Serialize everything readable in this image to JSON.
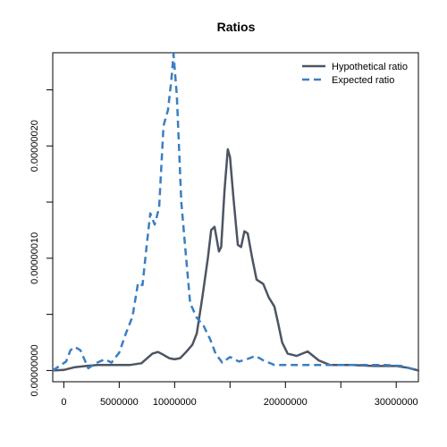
{
  "chart_data": {
    "type": "line",
    "title": "Ratios",
    "xlabel": "",
    "ylabel": "",
    "xlim": [
      -1000000,
      32000000
    ],
    "ylim": [
      -1e-08,
      2.83e-07
    ],
    "x_ticks": [
      0,
      5000000,
      10000000,
      15000000,
      20000000,
      25000000,
      30000000
    ],
    "x_tick_labels": [
      "0",
      "5000000",
      "10000000",
      "",
      "20000000",
      "",
      "30000000"
    ],
    "y_ticks": [
      0,
      5e-08,
      1e-07,
      1.5e-07,
      2e-07,
      2.5e-07
    ],
    "y_tick_labels": [
      "0.00000000",
      "",
      "0.00000010",
      "",
      "0.00000020",
      ""
    ],
    "legend_position": "top-right",
    "grid": false,
    "series": [
      {
        "name": "Hypothetical ratio",
        "color": "#4d5563",
        "dash": "solid",
        "points": [
          [
            -1000000,
            0.0
          ],
          [
            0,
            5e-10
          ],
          [
            1000000,
            3e-09
          ],
          [
            2000000,
            4e-09
          ],
          [
            3000000,
            5e-09
          ],
          [
            4000000,
            5e-09
          ],
          [
            5000000,
            5e-09
          ],
          [
            6000000,
            5e-09
          ],
          [
            7000000,
            6.5e-09
          ],
          [
            8000000,
            1.5e-08
          ],
          [
            8500000,
            1.65e-08
          ],
          [
            9000000,
            1.4e-08
          ],
          [
            9500000,
            1.1e-08
          ],
          [
            10000000,
            1e-08
          ],
          [
            10500000,
            1.1e-08
          ],
          [
            11000000,
            1.6e-08
          ],
          [
            11600000,
            2.3e-08
          ],
          [
            12000000,
            3.3e-08
          ],
          [
            12500000,
            6.5e-08
          ],
          [
            13000000,
            1e-07
          ],
          [
            13300000,
            1.25e-07
          ],
          [
            13600000,
            1.28e-07
          ],
          [
            14000000,
            1.06e-07
          ],
          [
            14200000,
            1.1e-07
          ],
          [
            14500000,
            1.6e-07
          ],
          [
            14800000,
            1.97e-07
          ],
          [
            15000000,
            1.9e-07
          ],
          [
            15300000,
            1.55e-07
          ],
          [
            15700000,
            1.12e-07
          ],
          [
            16000000,
            1.1e-07
          ],
          [
            16300000,
            1.24e-07
          ],
          [
            16600000,
            1.22e-07
          ],
          [
            17000000,
            1e-07
          ],
          [
            17400000,
            8.1e-08
          ],
          [
            18000000,
            7.7e-08
          ],
          [
            18500000,
            6.5e-08
          ],
          [
            19000000,
            5.7e-08
          ],
          [
            19300000,
            4.4e-08
          ],
          [
            19700000,
            2.5e-08
          ],
          [
            20200000,
            1.5e-08
          ],
          [
            21000000,
            1.3e-08
          ],
          [
            22000000,
            1.7e-08
          ],
          [
            23000000,
            9e-09
          ],
          [
            24000000,
            5e-09
          ],
          [
            26000000,
            5e-09
          ],
          [
            28000000,
            4e-09
          ],
          [
            30000000,
            4e-09
          ],
          [
            31000000,
            2.5e-09
          ],
          [
            32000000,
            0.0
          ]
        ]
      },
      {
        "name": "Expected ratio",
        "color": "#3a7fc1",
        "dash": "dashed",
        "points": [
          [
            -1000000,
            0.0
          ],
          [
            200000,
            8e-09
          ],
          [
            600000,
            1.8e-08
          ],
          [
            1000000,
            2.1e-08
          ],
          [
            1500000,
            1.8e-08
          ],
          [
            2200000,
            2e-09
          ],
          [
            3000000,
            7e-09
          ],
          [
            3700000,
            1e-08
          ],
          [
            4300000,
            7e-09
          ],
          [
            5000000,
            1.6e-08
          ],
          [
            5600000,
            3.3e-08
          ],
          [
            6200000,
            4.8e-08
          ],
          [
            6700000,
            7.8e-08
          ],
          [
            7100000,
            7.6e-08
          ],
          [
            7500000,
            1.13e-07
          ],
          [
            7800000,
            1.4e-07
          ],
          [
            8200000,
            1.3e-07
          ],
          [
            8600000,
            1.45e-07
          ],
          [
            9000000,
            2.18e-07
          ],
          [
            9400000,
            2.32e-07
          ],
          [
            9700000,
            2.58e-07
          ],
          [
            9900000,
            2.82e-07
          ],
          [
            10200000,
            2.45e-07
          ],
          [
            10600000,
            1.5e-07
          ],
          [
            11000000,
            1.05e-07
          ],
          [
            11400000,
            6e-08
          ],
          [
            12000000,
            4.7e-08
          ],
          [
            12600000,
            4e-08
          ],
          [
            13200000,
            2.8e-08
          ],
          [
            13700000,
            1.5e-08
          ],
          [
            14300000,
            7e-09
          ],
          [
            15000000,
            1.2e-08
          ],
          [
            15800000,
            8e-09
          ],
          [
            16500000,
            1e-08
          ],
          [
            17300000,
            1.3e-08
          ],
          [
            18000000,
            9e-09
          ],
          [
            19000000,
            5e-09
          ],
          [
            21000000,
            5e-09
          ],
          [
            23000000,
            5e-09
          ],
          [
            25000000,
            5e-09
          ],
          [
            27000000,
            5e-09
          ],
          [
            29000000,
            5e-09
          ],
          [
            30500000,
            4e-09
          ],
          [
            32000000,
            0.0
          ]
        ]
      }
    ]
  }
}
